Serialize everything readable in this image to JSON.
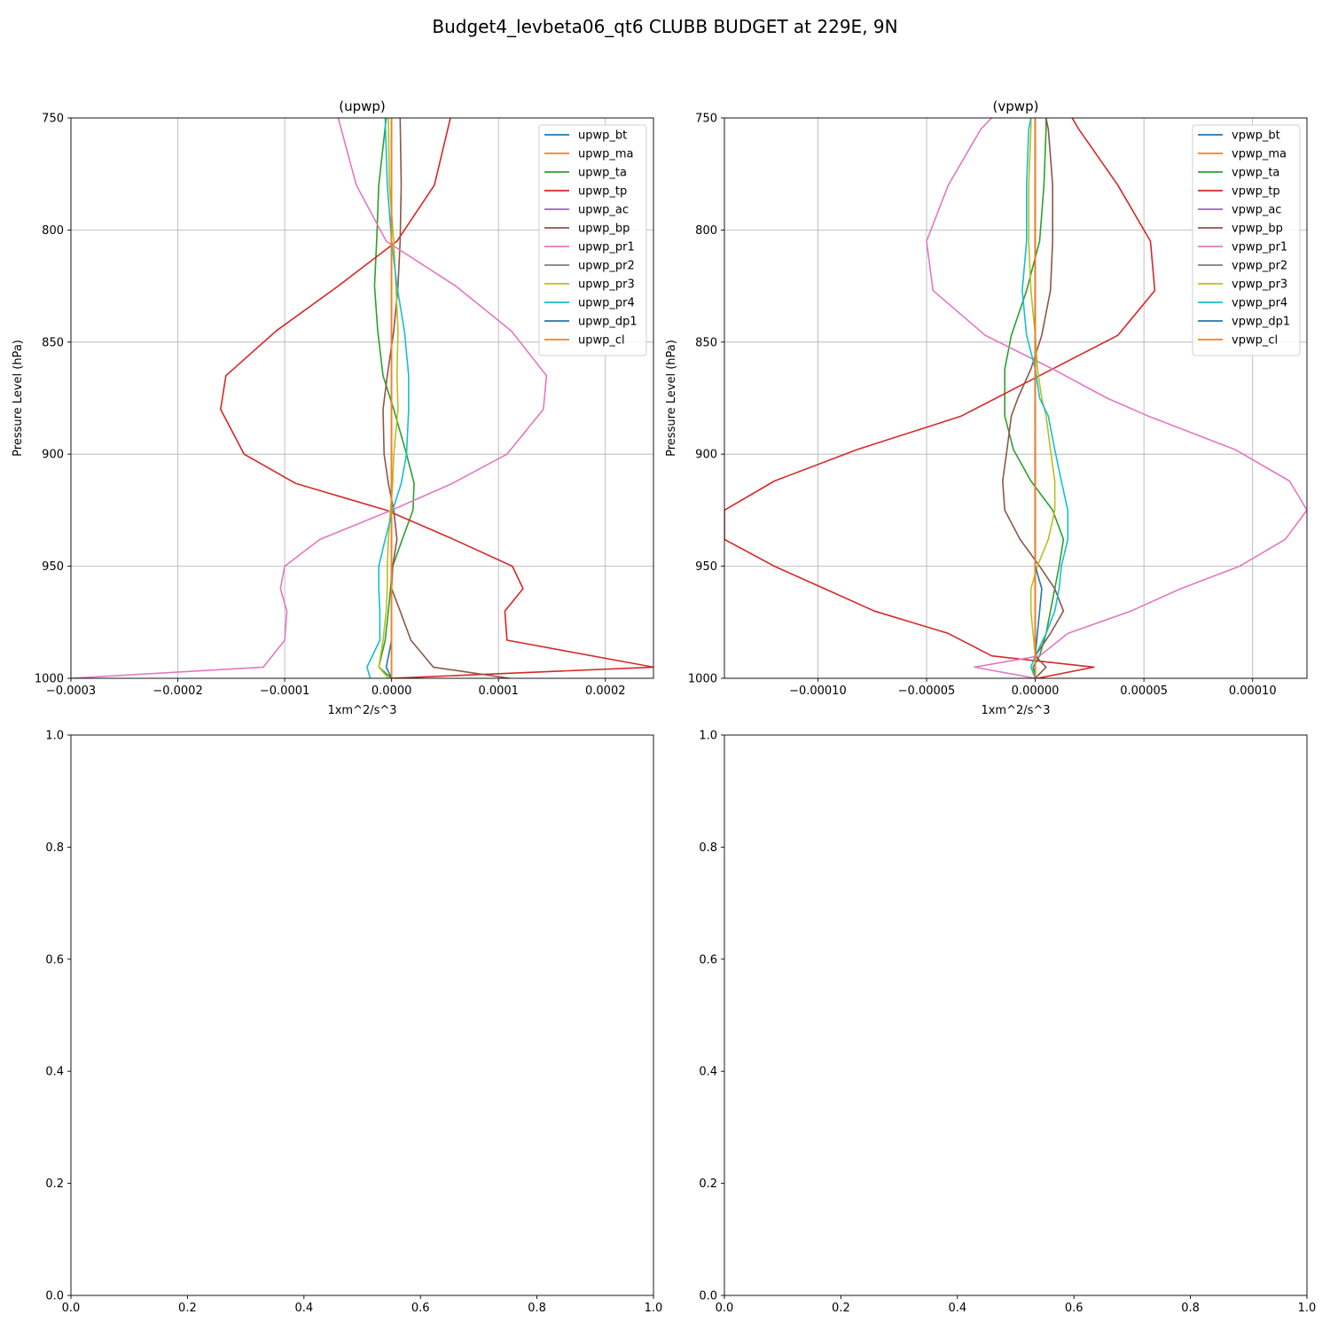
{
  "figure": {
    "suptitle": "Budget4_levbeta06_qt6 CLUBB BUDGET at 229E, 9N"
  },
  "chart_data": [
    {
      "type": "line",
      "title": "(upwp)",
      "xlabel": "1xm^2/s^3",
      "ylabel": "Pressure Level (hPa)",
      "xlim": [
        -0.0003,
        0.000245
      ],
      "ylim": [
        1000,
        750
      ],
      "y_inverted": true,
      "grid": true,
      "legend_position": "upper right",
      "xticks": [
        -0.0003,
        -0.0002,
        -0.0001,
        0.0,
        0.0001,
        0.0002
      ],
      "xtick_labels": [
        "−0.0003",
        "−0.0002",
        "−0.0001",
        "0.0000",
        "0.0001",
        "0.0002"
      ],
      "yticks": [
        750,
        800,
        850,
        900,
        950,
        1000
      ],
      "ytick_labels": [
        "750",
        "800",
        "850",
        "900",
        "950",
        "1000"
      ],
      "levels": [
        750,
        780,
        805,
        825,
        845,
        865,
        880,
        900,
        913,
        925,
        938,
        950,
        960,
        970,
        983,
        995,
        1000
      ],
      "series": [
        {
          "name": "upwp_bt",
          "color": "#1f77b4",
          "values": [
            0,
            0,
            0,
            0,
            0,
            0,
            0,
            0,
            0,
            0,
            0,
            0,
            0,
            0,
            0,
            0,
            0
          ]
        },
        {
          "name": "upwp_ma",
          "color": "#ff7f0e",
          "values": [
            0,
            0,
            0,
            0,
            0,
            0,
            0,
            0,
            0,
            0,
            0,
            0,
            0,
            0,
            0,
            0,
            0
          ]
        },
        {
          "name": "upwp_ta",
          "color": "#2ca02c",
          "values": [
            -5e-06,
            -1.2e-05,
            -1.4e-05,
            -1.6e-05,
            -1.3e-05,
            -8e-06,
            2e-06,
            1.4e-05,
            2.1e-05,
            2e-05,
            1e-05,
            1e-06,
            -1e-06,
            -3e-06,
            -6e-06,
            -1.2e-05,
            0
          ]
        },
        {
          "name": "upwp_tp",
          "color": "#d62728",
          "values": [
            5.5e-05,
            4e-05,
            5e-06,
            -5e-05,
            -0.000108,
            -0.000155,
            -0.00016,
            -0.000138,
            -9e-05,
            -5e-06,
            5.8e-05,
            0.000113,
            0.000123,
            0.000106,
            0.000108,
            0.000245,
            0
          ]
        },
        {
          "name": "upwp_ac",
          "color": "#9467bd",
          "values": [
            0,
            0,
            0,
            0,
            0,
            0,
            0,
            0,
            0,
            0,
            0,
            0,
            0,
            0,
            0,
            0,
            0
          ]
        },
        {
          "name": "upwp_bp",
          "color": "#8c564b",
          "values": [
            8e-06,
            9e-06,
            8e-06,
            6e-06,
            2e-06,
            -4e-06,
            -8e-06,
            -7e-06,
            -3e-06,
            2e-06,
            5e-06,
            1e-06,
            0,
            8e-06,
            1.8e-05,
            3.9e-05,
            0.00011
          ]
        },
        {
          "name": "upwp_pr1",
          "color": "#e377c2",
          "values": [
            -5e-05,
            -3.3e-05,
            -5e-06,
            6e-05,
            0.000112,
            0.000145,
            0.000142,
            0.000108,
            5.7e-05,
            0,
            -6.7e-05,
            -0.0001,
            -0.000104,
            -9.8e-05,
            -0.0001,
            -0.00012,
            -0.0003
          ]
        },
        {
          "name": "upwp_pr2",
          "color": "#7f7f7f",
          "values": [
            0,
            0,
            0,
            0,
            0,
            0,
            0,
            0,
            0,
            0,
            0,
            0,
            0,
            0,
            0,
            0,
            0
          ]
        },
        {
          "name": "upwp_pr3",
          "color": "#bcbd22",
          "values": [
            -3e-06,
            -2e-06,
            2e-06,
            4e-06,
            6e-06,
            5e-06,
            6e-06,
            2e-06,
            1e-06,
            -1e-06,
            -3e-06,
            -4e-06,
            -4e-06,
            -5e-06,
            -8e-06,
            -1.2e-05,
            -3e-06
          ]
        },
        {
          "name": "upwp_pr4",
          "color": "#17becf",
          "values": [
            -6e-06,
            -4e-06,
            0,
            5e-06,
            1.2e-05,
            1.6e-05,
            1.6e-05,
            1.4e-05,
            9e-06,
            1e-06,
            -6e-06,
            -1.2e-05,
            -1.2e-05,
            -1.1e-05,
            -1.1e-05,
            -2.3e-05,
            -2e-05
          ]
        },
        {
          "name": "upwp_dp1",
          "color": "#1f77b4",
          "values": [
            0,
            0,
            0,
            0,
            0,
            0,
            0,
            0,
            0,
            0,
            0,
            0,
            0,
            0,
            0,
            -5e-06,
            0
          ]
        },
        {
          "name": "upwp_cl",
          "color": "#ff7f0e",
          "values": [
            0,
            0,
            0,
            0,
            0,
            0,
            0,
            0,
            0,
            0,
            0,
            0,
            0,
            0,
            0,
            0,
            0
          ]
        }
      ]
    },
    {
      "type": "line",
      "title": "(vpwp)",
      "xlabel": "1xm^2/s^3",
      "ylabel": "Pressure Level (hPa)",
      "xlim": [
        -0.000143,
        0.000125
      ],
      "ylim": [
        1000,
        750
      ],
      "y_inverted": true,
      "grid": true,
      "legend_position": "upper right",
      "xticks": [
        -0.0001,
        -5e-05,
        0.0,
        5e-05,
        0.0001
      ],
      "xtick_labels": [
        "−0.00010",
        "−0.00005",
        "0.00000",
        "0.00005",
        "0.00010"
      ],
      "yticks": [
        750,
        800,
        850,
        900,
        950,
        1000
      ],
      "ytick_labels": [
        "750",
        "800",
        "850",
        "900",
        "950",
        "1000"
      ],
      "levels": [
        750,
        755,
        780,
        805,
        827,
        847,
        862,
        875,
        883,
        898,
        912,
        925,
        938,
        950,
        960,
        970,
        980,
        990,
        995,
        1000
      ],
      "series": [
        {
          "name": "vpwp_bt",
          "color": "#1f77b4",
          "values": [
            0,
            0,
            0,
            0,
            0,
            0,
            0,
            0,
            0,
            0,
            0,
            0,
            0,
            0,
            0,
            0,
            0,
            0,
            0,
            0
          ]
        },
        {
          "name": "vpwp_ma",
          "color": "#ff7f0e",
          "values": [
            0,
            0,
            0,
            0,
            0,
            0,
            0,
            0,
            0,
            0,
            0,
            0,
            0,
            0,
            0,
            0,
            0,
            0,
            0,
            0
          ]
        },
        {
          "name": "vpwp_ta",
          "color": "#2ca02c",
          "values": [
            5e-06,
            5e-06,
            4e-06,
            2e-06,
            -4e-06,
            -1.1e-05,
            -1.4e-05,
            -1.4e-05,
            -1.4e-05,
            -1e-05,
            -2e-06,
            8e-06,
            1.3e-05,
            1.1e-05,
            9e-06,
            7e-06,
            5e-06,
            2e-06,
            -1e-06,
            0
          ]
        },
        {
          "name": "vpwp_tp",
          "color": "#d62728",
          "values": [
            1.7e-05,
            2e-05,
            3.8e-05,
            5.3e-05,
            5.5e-05,
            3.8e-05,
            8e-06,
            -1.8e-05,
            -3.4e-05,
            -8.2e-05,
            -0.00012,
            -0.000143,
            -0.000143,
            -0.00012,
            -9.7e-05,
            -7.4e-05,
            -4e-05,
            -2e-05,
            2.7e-05,
            1e-06
          ]
        },
        {
          "name": "vpwp_ac",
          "color": "#9467bd",
          "values": [
            0,
            0,
            0,
            0,
            0,
            0,
            0,
            0,
            0,
            0,
            0,
            0,
            0,
            0,
            0,
            0,
            0,
            0,
            0,
            0
          ]
        },
        {
          "name": "vpwp_bp",
          "color": "#8c564b",
          "values": [
            5e-06,
            6e-06,
            8e-06,
            8e-06,
            7e-06,
            3e-06,
            -2e-06,
            -8e-06,
            -1.1e-05,
            -1.3e-05,
            -1.5e-05,
            -1.4e-05,
            -7e-06,
            2e-06,
            9e-06,
            1.3e-05,
            7e-06,
            0,
            5e-06,
            0
          ]
        },
        {
          "name": "vpwp_pr1",
          "color": "#e377c2",
          "values": [
            -2e-05,
            -2.5e-05,
            -4e-05,
            -5e-05,
            -4.7e-05,
            -2.3e-05,
            8e-06,
            3.3e-05,
            5.2e-05,
            9.2e-05,
            0.000117,
            0.000125,
            0.000115,
            9.4e-05,
            6.7e-05,
            4.4e-05,
            1.5e-05,
            2e-06,
            -2.8e-05,
            0
          ]
        },
        {
          "name": "vpwp_pr2",
          "color": "#7f7f7f",
          "values": [
            0,
            0,
            0,
            0,
            0,
            0,
            0,
            0,
            0,
            0,
            0,
            0,
            0,
            0,
            0,
            0,
            0,
            0,
            0,
            0
          ]
        },
        {
          "name": "vpwp_pr3",
          "color": "#bcbd22",
          "values": [
            -2e-06,
            -2e-06,
            -3e-06,
            -3e-06,
            -2e-06,
            0,
            1e-06,
            3e-06,
            5e-06,
            7e-06,
            9e-06,
            9e-06,
            6e-06,
            1e-06,
            -2e-06,
            -2e-06,
            -1e-06,
            0,
            0,
            0
          ]
        },
        {
          "name": "vpwp_pr4",
          "color": "#17becf",
          "values": [
            -2e-06,
            -3e-06,
            -4e-06,
            -4e-06,
            -6e-06,
            -4e-06,
            0,
            2e-06,
            6e-06,
            9e-06,
            1.2e-05,
            1.5e-05,
            1.5e-05,
            1.2e-05,
            1.1e-05,
            9e-06,
            5e-06,
            0,
            -2e-06,
            0
          ]
        },
        {
          "name": "vpwp_dp1",
          "color": "#1f77b4",
          "values": [
            0,
            0,
            0,
            0,
            0,
            0,
            0,
            0,
            0,
            0,
            0,
            0,
            0,
            0,
            3e-06,
            2e-06,
            1e-06,
            0,
            0,
            0
          ]
        },
        {
          "name": "vpwp_cl",
          "color": "#ff7f0e",
          "values": [
            0,
            0,
            0,
            0,
            0,
            0,
            0,
            0,
            0,
            0,
            0,
            0,
            0,
            0,
            0,
            0,
            0,
            0,
            0,
            0
          ]
        }
      ]
    },
    {
      "type": "line",
      "title": "",
      "xlim": [
        0.0,
        1.0
      ],
      "ylim": [
        0.0,
        1.0
      ],
      "grid": false,
      "xticks": [
        0.0,
        0.2,
        0.4,
        0.6,
        0.8,
        1.0
      ],
      "xtick_labels": [
        "0.0",
        "0.2",
        "0.4",
        "0.6",
        "0.8",
        "1.0"
      ],
      "yticks": [
        0.0,
        0.2,
        0.4,
        0.6,
        0.8,
        1.0
      ],
      "ytick_labels": [
        "0.0",
        "0.2",
        "0.4",
        "0.6",
        "0.8",
        "1.0"
      ],
      "series": []
    },
    {
      "type": "line",
      "title": "",
      "xlim": [
        0.0,
        1.0
      ],
      "ylim": [
        0.0,
        1.0
      ],
      "grid": false,
      "xticks": [
        0.0,
        0.2,
        0.4,
        0.6,
        0.8,
        1.0
      ],
      "xtick_labels": [
        "0.0",
        "0.2",
        "0.4",
        "0.6",
        "0.8",
        "1.0"
      ],
      "yticks": [
        0.0,
        0.2,
        0.4,
        0.6,
        0.8,
        1.0
      ],
      "ytick_labels": [
        "0.0",
        "0.2",
        "0.4",
        "0.6",
        "0.8",
        "1.0"
      ],
      "series": []
    }
  ]
}
